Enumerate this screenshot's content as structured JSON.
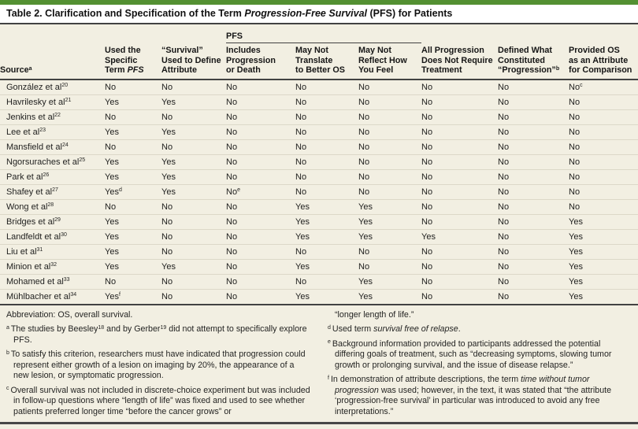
{
  "colors": {
    "accent_green": "#539032",
    "panel_cream": "#f2efe2",
    "rule_dark": "#424242",
    "row_separator": "#dcd8c8",
    "text": "#1f1f1e"
  },
  "title": {
    "segments": [
      {
        "t": "Table 2. Clarification and Specification of the Term "
      },
      {
        "t": "Progression-Free Survival",
        "i": true
      },
      {
        "t": " (PFS) for Patients"
      }
    ]
  },
  "table": {
    "group_header": "PFS",
    "columns": [
      {
        "name": "source",
        "segments": [
          {
            "t": "Source"
          },
          {
            "sup": "a"
          }
        ]
      },
      {
        "name": "used-specific-term-pfs",
        "segments": [
          {
            "t": "Used the\nSpecific\nTerm "
          },
          {
            "t": "PFS",
            "i": true
          }
        ]
      },
      {
        "name": "survival-used-to-define-attribute",
        "segments": [
          {
            "t": "“Survival”\nUsed to Define\nAttribute"
          }
        ]
      },
      {
        "name": "includes-progression-or-death",
        "segments": [
          {
            "t": "Includes\nProgression\nor Death"
          }
        ]
      },
      {
        "name": "may-not-translate-to-better-os",
        "segments": [
          {
            "t": "May Not\nTranslate\nto Better OS"
          }
        ]
      },
      {
        "name": "may-not-reflect-how-you-feel",
        "segments": [
          {
            "t": "May Not\nReflect How\nYou Feel"
          }
        ]
      },
      {
        "name": "all-progression-does-not-require-treatment",
        "segments": [
          {
            "t": "All Progression\nDoes Not Require\nTreatment"
          }
        ]
      },
      {
        "name": "defined-what-constituted-progression",
        "segments": [
          {
            "t": "Defined What\nConstituted\n“Progression”"
          },
          {
            "sup": "b"
          }
        ]
      },
      {
        "name": "provided-os-as-attribute-for-comparison",
        "segments": [
          {
            "t": "Provided OS\nas an Attribute\nfor Comparison"
          }
        ]
      }
    ],
    "rows": [
      {
        "source": {
          "v": "González et al",
          "sup": "20"
        },
        "values": [
          "No",
          "No",
          "No",
          "No",
          "No",
          "No",
          "No",
          {
            "v": "No",
            "sup": "c"
          }
        ]
      },
      {
        "source": {
          "v": "Havrilesky et al",
          "sup": "21"
        },
        "values": [
          "Yes",
          "Yes",
          "No",
          "No",
          "No",
          "No",
          "No",
          "No"
        ]
      },
      {
        "source": {
          "v": "Jenkins et al",
          "sup": "22"
        },
        "values": [
          "No",
          "No",
          "No",
          "No",
          "No",
          "No",
          "No",
          "No"
        ]
      },
      {
        "source": {
          "v": "Lee et al",
          "sup": "23"
        },
        "values": [
          "Yes",
          "Yes",
          "No",
          "No",
          "No",
          "No",
          "No",
          "No"
        ]
      },
      {
        "source": {
          "v": "Mansfield et al",
          "sup": "24"
        },
        "values": [
          "No",
          "No",
          "No",
          "No",
          "No",
          "No",
          "No",
          "No"
        ]
      },
      {
        "source": {
          "v": "Ngorsuraches et al",
          "sup": "25"
        },
        "values": [
          "Yes",
          "Yes",
          "No",
          "No",
          "No",
          "No",
          "No",
          "No"
        ]
      },
      {
        "source": {
          "v": "Park et al",
          "sup": "26"
        },
        "values": [
          "Yes",
          "Yes",
          "No",
          "No",
          "No",
          "No",
          "No",
          "No"
        ]
      },
      {
        "source": {
          "v": "Shafey et al",
          "sup": "27"
        },
        "values": [
          {
            "v": "Yes",
            "sup": "d"
          },
          "Yes",
          {
            "v": "No",
            "sup": "e"
          },
          "No",
          "No",
          "No",
          "No",
          "No"
        ]
      },
      {
        "source": {
          "v": "Wong et al",
          "sup": "28"
        },
        "values": [
          "No",
          "No",
          "No",
          "Yes",
          "Yes",
          "No",
          "No",
          "No"
        ]
      },
      {
        "source": {
          "v": "Bridges et al",
          "sup": "29"
        },
        "values": [
          "Yes",
          "No",
          "No",
          "Yes",
          "Yes",
          "No",
          "No",
          "Yes"
        ]
      },
      {
        "source": {
          "v": "Landfeldt et al",
          "sup": "30"
        },
        "values": [
          "Yes",
          "No",
          "No",
          "Yes",
          "Yes",
          "Yes",
          "No",
          "Yes"
        ]
      },
      {
        "source": {
          "v": "Liu et al",
          "sup": "31"
        },
        "values": [
          "Yes",
          "No",
          "No",
          "No",
          "No",
          "No",
          "No",
          "Yes"
        ]
      },
      {
        "source": {
          "v": "Minion et al",
          "sup": "32"
        },
        "values": [
          "Yes",
          "Yes",
          "No",
          "Yes",
          "No",
          "No",
          "No",
          "Yes"
        ]
      },
      {
        "source": {
          "v": "Mohamed et al",
          "sup": "33"
        },
        "values": [
          "No",
          "No",
          "No",
          "No",
          "Yes",
          "No",
          "No",
          "Yes"
        ]
      },
      {
        "source": {
          "v": "Mühlbacher et al",
          "sup": "34"
        },
        "values": [
          {
            "v": "Yes",
            "sup": "f"
          },
          "No",
          "No",
          "Yes",
          "Yes",
          "No",
          "No",
          "Yes"
        ]
      }
    ]
  },
  "footnotes": {
    "left": [
      {
        "marker": "",
        "segments": [
          {
            "t": "Abbreviation: OS, overall survival."
          }
        ]
      },
      {
        "marker": "a",
        "segments": [
          {
            "t": "The studies by Beesley"
          },
          {
            "sup": "18"
          },
          {
            "t": " and by Gerber"
          },
          {
            "sup": "19"
          },
          {
            "t": " did not attempt to specifically explore PFS."
          }
        ]
      },
      {
        "marker": "b",
        "segments": [
          {
            "t": "To satisfy this criterion, researchers must have indicated that progression could represent either growth of a lesion on imaging by 20%, the appearance of a new lesion, or symptomatic progression."
          }
        ]
      },
      {
        "marker": "c",
        "segments": [
          {
            "t": "Overall survival was not included in discrete-choice experiment but was included in follow-up questions where “length of life” was fixed and used to see whether patients preferred longer time “before the cancer grows” or"
          }
        ]
      }
    ],
    "right": [
      {
        "marker": "",
        "cont": true,
        "segments": [
          {
            "t": "“longer length of life.”"
          }
        ]
      },
      {
        "marker": "d",
        "segments": [
          {
            "t": "Used term "
          },
          {
            "t": "survival free of relapse",
            "i": true
          },
          {
            "t": "."
          }
        ]
      },
      {
        "marker": "e",
        "segments": [
          {
            "t": "Background information provided to participants addressed the potential differing goals of treatment, such as “decreasing symptoms, slowing tumor growth or prolonging survival, and the issue of disease relapse.”"
          }
        ]
      },
      {
        "marker": "f",
        "segments": [
          {
            "t": "In demonstration of attribute descriptions, the term "
          },
          {
            "t": "time without tumor progression",
            "i": true
          },
          {
            "t": " was used; however, in the text, it was stated that “the attribute ‘progression-free survival’ in particular was introduced to avoid any free interpretations.”"
          }
        ]
      }
    ]
  }
}
